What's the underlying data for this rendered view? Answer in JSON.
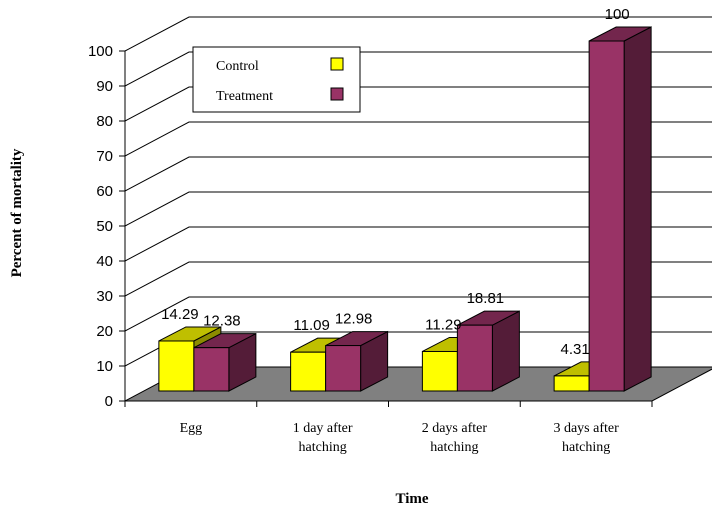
{
  "chart_data": {
    "type": "bar",
    "style": "3d-clustered-column",
    "title": "",
    "xlabel": "Time",
    "ylabel": "Percent of mortality",
    "ylim": [
      0,
      100
    ],
    "yticks": [
      0,
      10,
      20,
      30,
      40,
      50,
      60,
      70,
      80,
      90,
      100
    ],
    "grid": true,
    "legend_position": "top-left",
    "categories": [
      [
        "Egg"
      ],
      [
        "1 day after",
        "hatching"
      ],
      [
        "2 days after",
        "hatching"
      ],
      [
        "3 days after",
        "hatching"
      ]
    ],
    "series": [
      {
        "name": "Control",
        "values": [
          14.29,
          11.09,
          11.29,
          4.31
        ],
        "labels": [
          "14.29",
          "11.09",
          "11.29",
          "4.31"
        ],
        "color": "#FFFF00"
      },
      {
        "name": "Treatment",
        "values": [
          12.38,
          12.98,
          18.81,
          100
        ],
        "labels": [
          "12.38",
          "12.98",
          "18.81",
          "100"
        ],
        "color": "#993366"
      }
    ],
    "floor_color": "#808080"
  }
}
